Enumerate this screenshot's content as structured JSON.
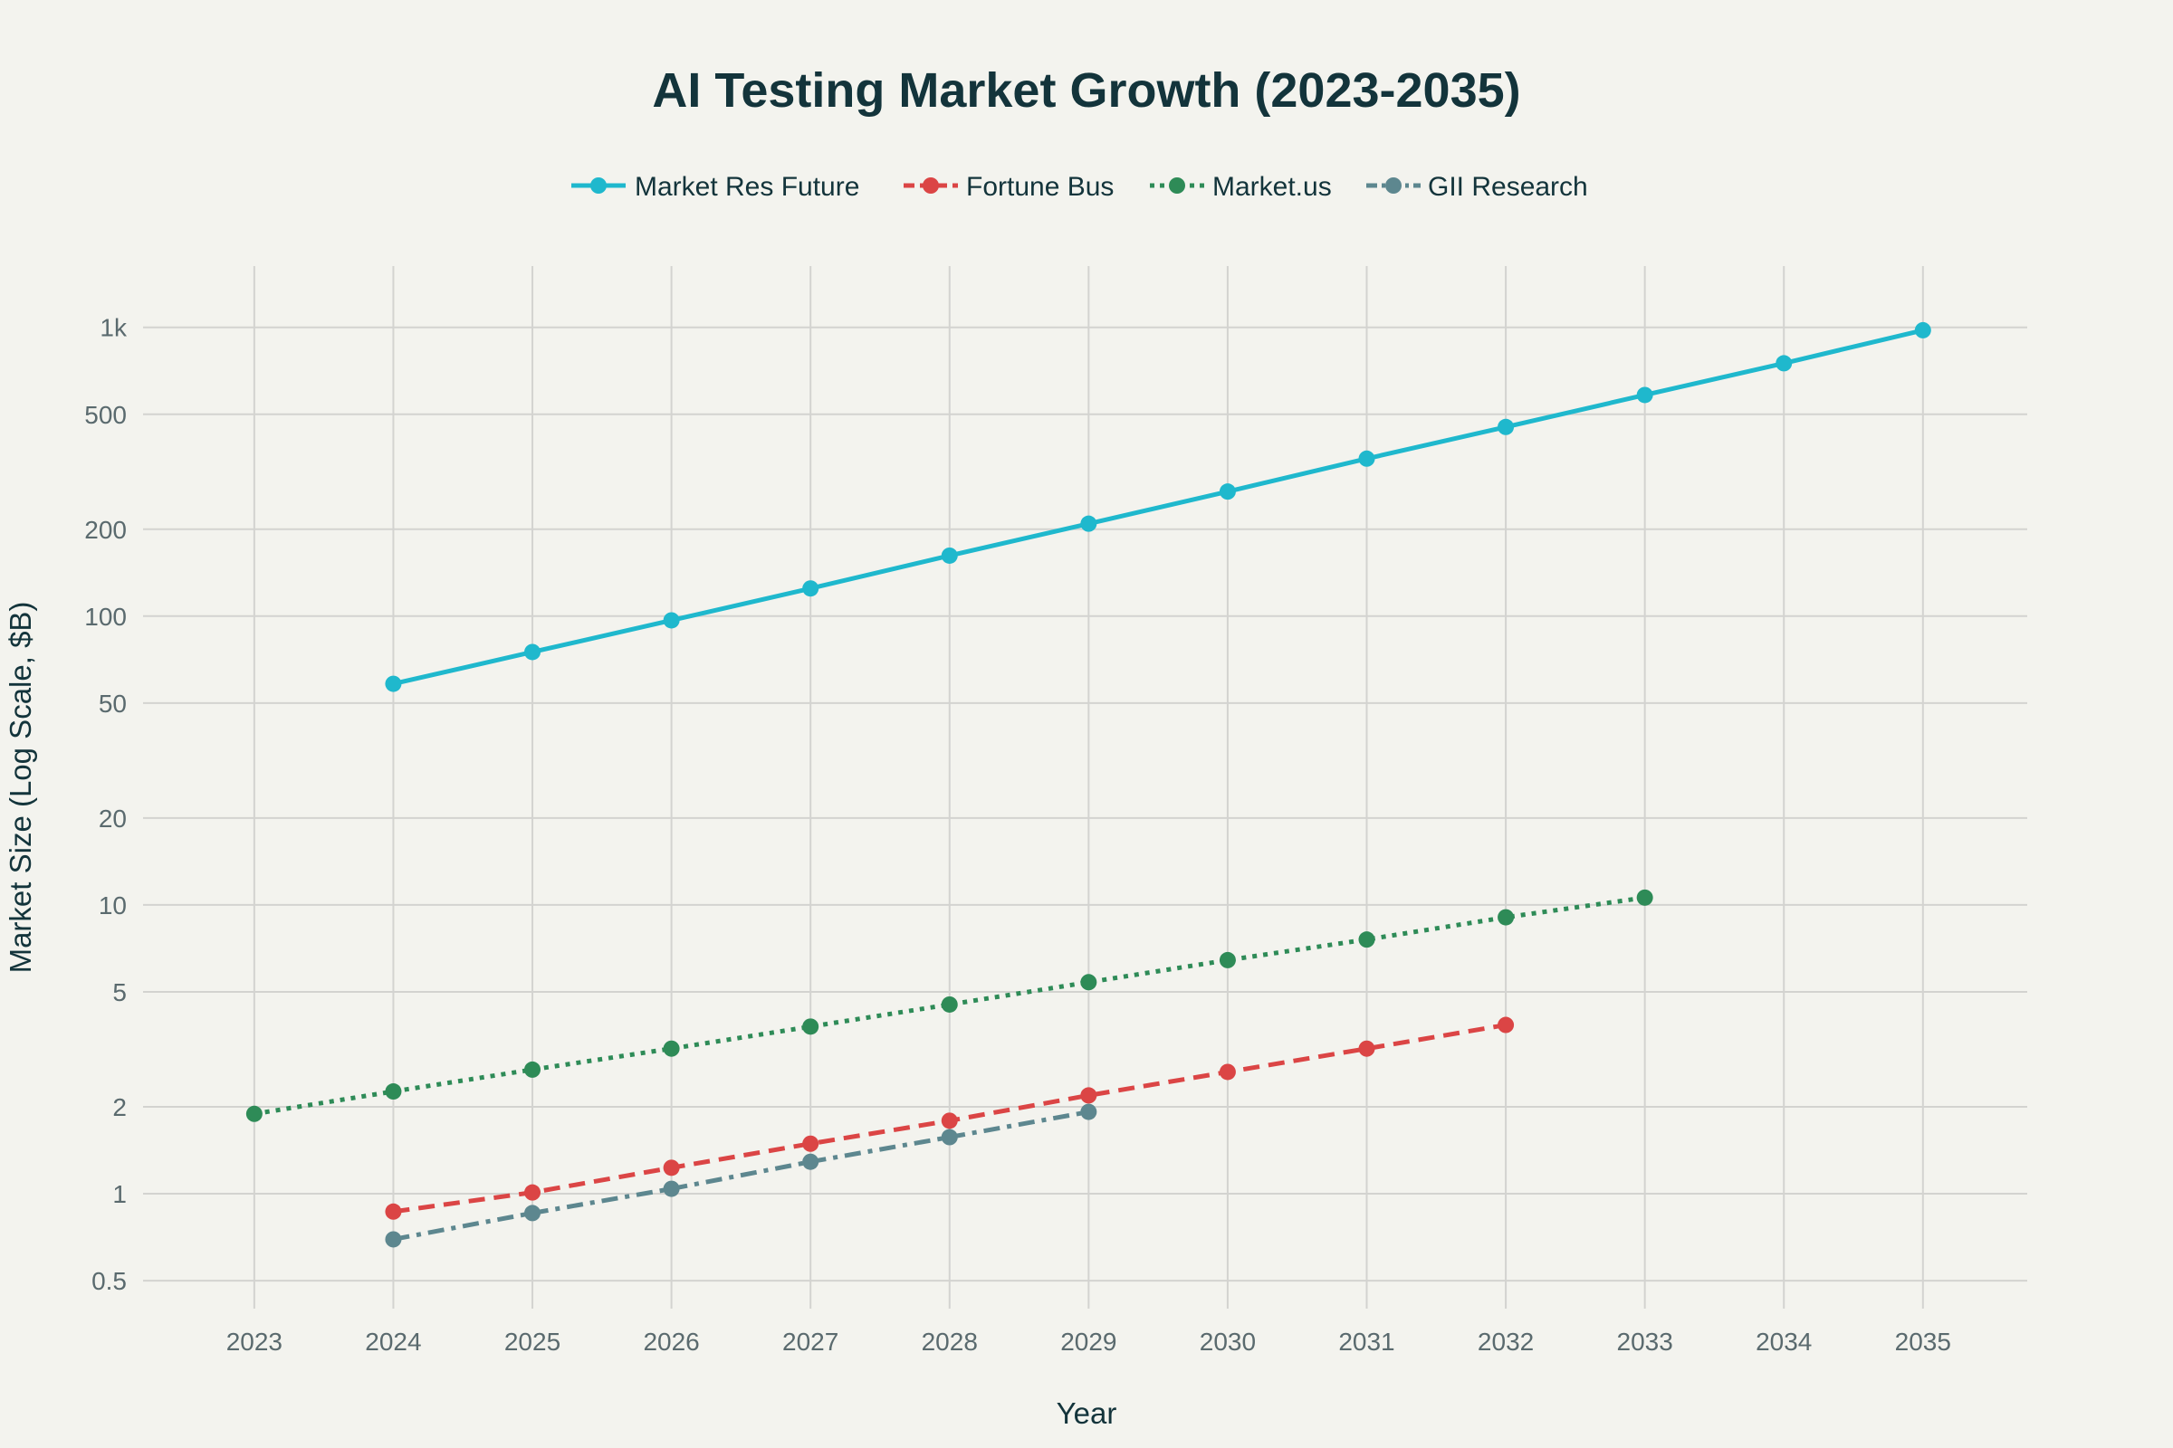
{
  "chart_data": {
    "type": "line",
    "title": "AI Testing Market Growth (2023-2035)",
    "xlabel": "Year",
    "ylabel": "Market Size (Log Scale, $B)",
    "yscale": "log",
    "xlim": [
      2022.2,
      2035.75
    ],
    "ylim": [
      0.4,
      1630
    ],
    "grid": true,
    "legend_position": "top-center",
    "x_ticks": [
      2023,
      2024,
      2025,
      2026,
      2027,
      2028,
      2029,
      2030,
      2031,
      2032,
      2033,
      2034,
      2035
    ],
    "y_ticks": [
      {
        "value": 0.5,
        "label": "0.5"
      },
      {
        "value": 1,
        "label": "1"
      },
      {
        "value": 2,
        "label": "2"
      },
      {
        "value": 5,
        "label": "5"
      },
      {
        "value": 10,
        "label": "10"
      },
      {
        "value": 20,
        "label": "20"
      },
      {
        "value": 50,
        "label": "50"
      },
      {
        "value": 100,
        "label": "100"
      },
      {
        "value": 200,
        "label": "200"
      },
      {
        "value": 500,
        "label": "500"
      },
      {
        "value": 1000,
        "label": "1k"
      }
    ],
    "series": [
      {
        "name": "Market Res Future",
        "color": "#1fb8cd",
        "dash": "solid",
        "x": [
          2024,
          2025,
          2026,
          2027,
          2028,
          2029,
          2030,
          2031,
          2032,
          2033,
          2034,
          2035
        ],
        "y": [
          58.3,
          75.1,
          96.7,
          124.7,
          162,
          209,
          270,
          351,
          452,
          583,
          751,
          977
        ]
      },
      {
        "name": "Fortune Bus",
        "color": "#db4545",
        "dash": "dash",
        "x": [
          2024,
          2025,
          2026,
          2027,
          2028,
          2029,
          2030,
          2031,
          2032
        ],
        "y": [
          0.867,
          1.01,
          1.23,
          1.49,
          1.79,
          2.19,
          2.64,
          3.18,
          3.84
        ]
      },
      {
        "name": "Market.us",
        "color": "#2e8b57",
        "dash": "dot",
        "x": [
          2023,
          2024,
          2025,
          2026,
          2027,
          2028,
          2029,
          2030,
          2031,
          2032,
          2033
        ],
        "y": [
          1.89,
          2.26,
          2.69,
          3.18,
          3.79,
          4.52,
          5.4,
          6.44,
          7.59,
          9.06,
          10.6
        ]
      },
      {
        "name": "GII Research",
        "color": "#5d878f",
        "dash": "dashdot",
        "x": [
          2024,
          2025,
          2026,
          2027,
          2028,
          2029
        ],
        "y": [
          0.695,
          0.857,
          1.04,
          1.29,
          1.57,
          1.92
        ]
      }
    ]
  }
}
